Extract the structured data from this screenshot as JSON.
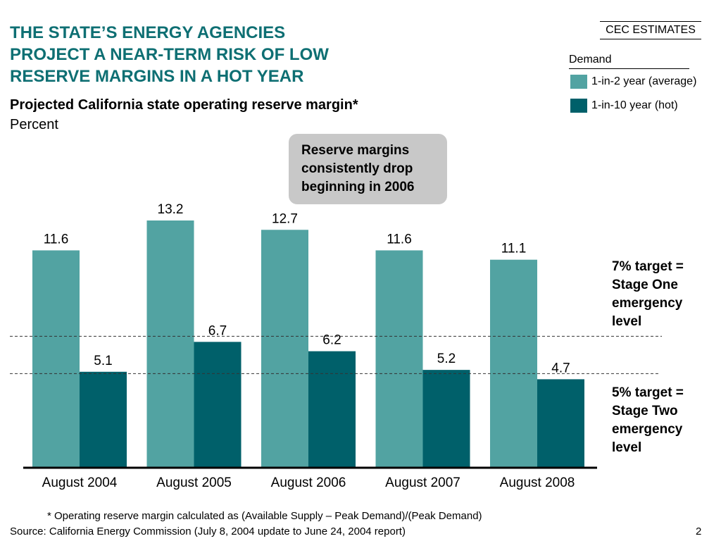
{
  "header": {
    "title_lines": [
      "THE STATE’S ENERGY AGENCIES",
      "PROJECT A NEAR-TERM RISK OF LOW",
      "RESERVE MARGINS IN A HOT YEAR"
    ],
    "subtitle": "Projected California state operating reserve margin*",
    "unit": "Percent",
    "estimates_label": "CEC ESTIMATES"
  },
  "legend": {
    "title": "Demand",
    "items": [
      {
        "label": "1-in-2 year (average)",
        "color": "#52a3a2"
      },
      {
        "label": "1-in-10 year (hot)",
        "color": "#00606a"
      }
    ]
  },
  "callout": {
    "lines": [
      "Reserve margins",
      "consistently drop",
      "beginning in 2006"
    ]
  },
  "targets": [
    {
      "lines": [
        "7% target =",
        "Stage One",
        "emergency",
        "level"
      ]
    },
    {
      "lines": [
        "5% target =",
        "Stage Two",
        "emergency",
        "level"
      ]
    }
  ],
  "footer": {
    "footnote": "* Operating reserve margin calculated as (Available Supply – Peak Demand)/(Peak Demand)",
    "source": "Source: California Energy Commission (July 8, 2004 update to June 24, 2004 report)",
    "page_number": "2"
  },
  "chart_data": {
    "type": "bar",
    "categories": [
      "August 2004",
      "August 2005",
      "August 2006",
      "August 2007",
      "August 2008"
    ],
    "series": [
      {
        "name": "1-in-2 year (average)",
        "values": [
          11.6,
          13.2,
          12.7,
          11.6,
          11.1
        ],
        "color": "#52a3a2"
      },
      {
        "name": "1-in-10 year (hot)",
        "values": [
          5.1,
          6.7,
          6.2,
          5.2,
          4.7
        ],
        "color": "#00606a"
      }
    ],
    "reference_lines": [
      7,
      5
    ],
    "ylim": [
      0,
      13.2
    ],
    "grid": false,
    "legend_position": "top-right"
  }
}
